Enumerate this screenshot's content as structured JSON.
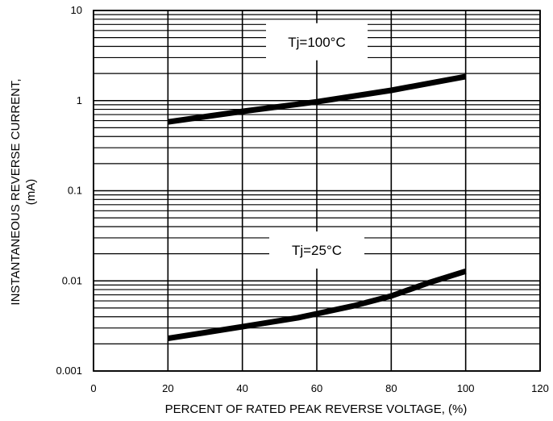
{
  "chart_data": {
    "type": "line",
    "title": "",
    "xlabel": "PERCENT OF RATED PEAK REVERSE VOLTAGE, (%)",
    "ylabel_line1": "INSTANTANEOUS REVERSE CURRENT,",
    "ylabel_line2": "(mA)",
    "xlim": [
      0,
      120
    ],
    "ylim": [
      0.001,
      10
    ],
    "yscale": "log",
    "grid": true,
    "legend": "none",
    "x_ticks": [
      {
        "value": 0,
        "label": "0"
      },
      {
        "value": 20,
        "label": "20"
      },
      {
        "value": 40,
        "label": "40"
      },
      {
        "value": 60,
        "label": "60"
      },
      {
        "value": 80,
        "label": "80"
      },
      {
        "value": 100,
        "label": "100"
      },
      {
        "value": 120,
        "label": "120"
      }
    ],
    "y_ticks": [
      {
        "value": 0.001,
        "label": "0.001"
      },
      {
        "value": 0.01,
        "label": "0.01"
      },
      {
        "value": 0.1,
        "label": "0.1"
      },
      {
        "value": 1,
        "label": "1"
      },
      {
        "value": 10,
        "label": "10"
      }
    ],
    "series": [
      {
        "name": "Tj=100°C",
        "label_position": [
          60,
          4.5
        ],
        "x": [
          20,
          40,
          60,
          80,
          100
        ],
        "y": [
          0.58,
          0.76,
          0.97,
          1.3,
          1.85
        ]
      },
      {
        "name": "Tj=25°C",
        "label_position": [
          60,
          0.022
        ],
        "x": [
          20,
          40,
          55,
          70,
          80,
          90,
          100
        ],
        "y": [
          0.0023,
          0.0031,
          0.0039,
          0.0053,
          0.0068,
          0.0095,
          0.0128
        ]
      }
    ],
    "colors": {
      "line": "#000000",
      "grid": "#000000",
      "background": "#ffffff"
    }
  }
}
